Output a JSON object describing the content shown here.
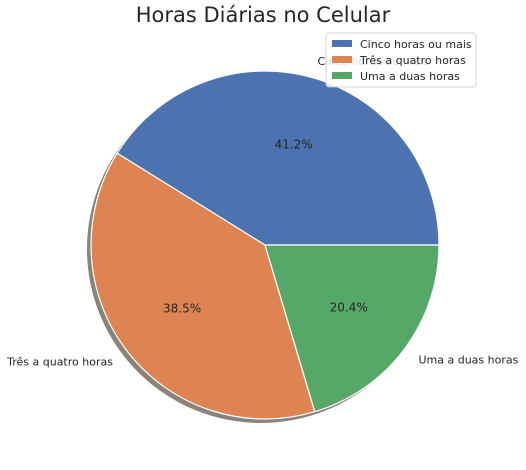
{
  "chart_data": {
    "type": "pie",
    "title": "Horas Diárias no Celular",
    "slices": [
      {
        "label": "Cinco horas ou mais",
        "percent": 41.2,
        "percent_label": "41.2%",
        "color": "#4c72b0"
      },
      {
        "label": "Três a quatro horas",
        "percent": 38.5,
        "percent_label": "38.5%",
        "color": "#dd8452"
      },
      {
        "label": "Uma a duas horas",
        "percent": 20.4,
        "percent_label": "20.4%",
        "color": "#55a868"
      }
    ],
    "start_angle_deg": 0,
    "direction": "counterclockwise",
    "shadow": true,
    "legend": {
      "position": "top-right",
      "entries": [
        "Cinco horas ou mais",
        "Três a quatro horas",
        "Uma a duas horas"
      ]
    }
  }
}
